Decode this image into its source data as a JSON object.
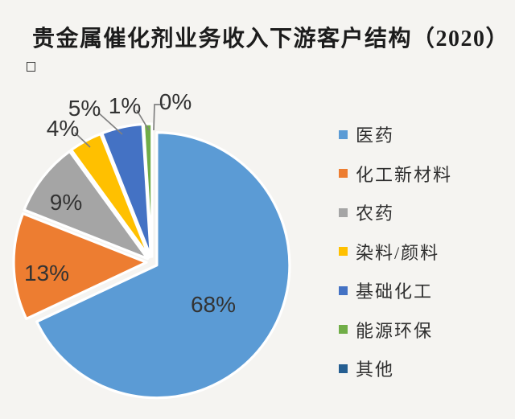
{
  "page": {
    "title": "贵金属催化剂业务收入下游客户结构（2020）",
    "title_overflow_glyph": "□"
  },
  "chart_data": {
    "type": "pie",
    "title": "贵金属催化剂业务收入下游客户结构（2020）",
    "legend_position": "right",
    "series": [
      {
        "name": "医药",
        "value": 68,
        "label": "68%",
        "color": "#5B9BD5"
      },
      {
        "name": "化工新材料",
        "value": 13,
        "label": "13%",
        "color": "#ED7D31"
      },
      {
        "name": "农药",
        "value": 9,
        "label": "9%",
        "color": "#A5A5A5"
      },
      {
        "name": "染料/颜料",
        "value": 4,
        "label": "4%",
        "color": "#FFC000"
      },
      {
        "name": "基础化工",
        "value": 5,
        "label": "5%",
        "color": "#4472C4"
      },
      {
        "name": "能源环保",
        "value": 1,
        "label": "1%",
        "color": "#70AD47"
      },
      {
        "name": "其他",
        "value": 0,
        "label": "0%",
        "color": "#255E91"
      }
    ]
  }
}
